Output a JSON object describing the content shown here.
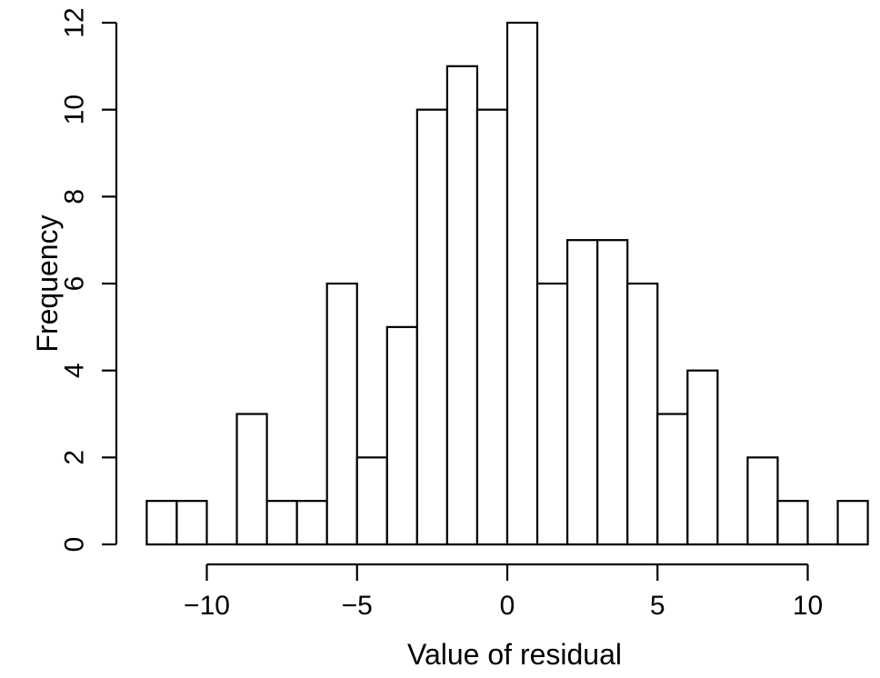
{
  "chart_data": {
    "type": "bar",
    "subtype": "histogram",
    "title": "",
    "xlabel": "Value of residual",
    "ylabel": "Frequency",
    "bin_start": -12,
    "bin_width": 1,
    "counts": [
      1,
      1,
      0,
      3,
      1,
      1,
      6,
      2,
      5,
      10,
      11,
      10,
      12,
      6,
      7,
      7,
      6,
      3,
      4,
      0,
      2,
      1,
      0,
      1
    ],
    "xlim": [
      -12,
      12
    ],
    "ylim": [
      0,
      12
    ],
    "x_tick_values": [
      -10,
      -5,
      0,
      5,
      10
    ],
    "x_tick_labels": [
      "−10",
      "−5",
      "0",
      "5",
      "10"
    ],
    "y_tick_values": [
      0,
      2,
      4,
      6,
      8,
      10,
      12
    ],
    "y_tick_labels": [
      "0",
      "2",
      "4",
      "6",
      "8",
      "10",
      "12"
    ],
    "grid": false,
    "bar_fill": "#ffffff",
    "bar_stroke": "#000000",
    "axis_color": "#000000",
    "text_color": "#000000",
    "background": "#ffffff"
  }
}
